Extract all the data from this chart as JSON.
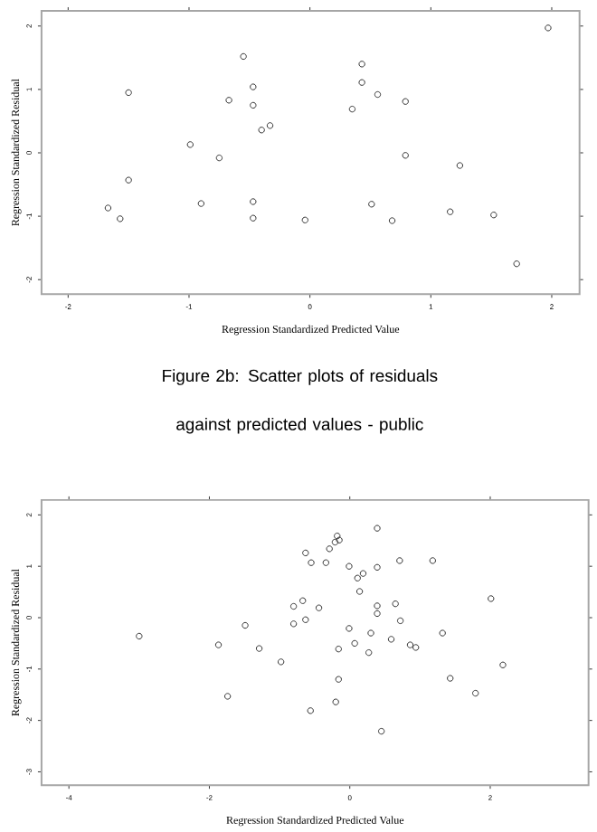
{
  "chart_data": [
    {
      "type": "scatter",
      "xlabel": "Regression Standardized Predicted Value",
      "ylabel": "Regression Standardized Residual",
      "marker": "circle",
      "color": "#333333",
      "x": [
        -1.67,
        -1.57,
        -1.5,
        -1.5,
        -0.99,
        -0.9,
        -0.75,
        -0.67,
        -0.55,
        -0.47,
        -0.47,
        -0.47,
        -0.47,
        -0.4,
        -0.33,
        -0.04,
        0.35,
        0.43,
        0.43,
        0.56,
        0.51,
        0.68,
        0.79,
        0.79,
        1.16,
        1.24,
        1.52,
        1.71,
        1.97
      ],
      "values": [
        -0.87,
        -1.04,
        0.95,
        -0.43,
        0.13,
        -0.8,
        -0.08,
        0.83,
        1.52,
        1.04,
        0.75,
        -0.77,
        -1.03,
        0.36,
        0.43,
        -1.06,
        0.69,
        1.4,
        1.11,
        0.92,
        -0.81,
        -1.07,
        0.81,
        -0.04,
        -0.93,
        -0.2,
        -0.98,
        -1.75,
        1.97
      ],
      "xlim": [
        -2.22,
        2.23
      ],
      "ylim": [
        -2.23,
        2.24
      ],
      "xticks": [
        -2,
        -1,
        0,
        1,
        2
      ],
      "yticks": [
        -2,
        -1,
        0,
        1,
        2
      ],
      "annotations": [
        "Figure 2b: Scatter plots of residuals against predicted values - public"
      ]
    },
    {
      "type": "scatter",
      "xlabel": "Regression Standardized Predicted Value",
      "ylabel": "Regression Standardized Residual",
      "marker": "circle",
      "color": "#333333",
      "x": [
        -3.0,
        -1.87,
        -1.74,
        -1.49,
        -1.29,
        -0.98,
        -0.8,
        -0.8,
        -0.67,
        -0.63,
        -0.63,
        -0.55,
        -0.56,
        -0.44,
        -0.34,
        -0.29,
        -0.21,
        -0.18,
        -0.15,
        -0.2,
        -0.16,
        -0.16,
        -0.01,
        -0.01,
        0.07,
        0.11,
        0.14,
        0.19,
        0.27,
        0.3,
        0.39,
        0.39,
        0.39,
        0.39,
        0.45,
        0.59,
        0.65,
        0.71,
        0.72,
        0.86,
        0.94,
        1.18,
        1.32,
        1.43,
        1.79,
        2.01,
        2.18
      ],
      "values": [
        -0.36,
        -0.53,
        -1.53,
        -0.15,
        -0.6,
        -0.86,
        0.22,
        -0.12,
        0.33,
        1.26,
        -0.04,
        1.07,
        -1.81,
        0.19,
        1.07,
        1.34,
        1.47,
        1.59,
        1.51,
        -1.64,
        -0.61,
        -1.2,
        1.0,
        -0.21,
        -0.5,
        0.77,
        0.51,
        0.86,
        -0.68,
        -0.3,
        0.98,
        0.23,
        0.08,
        1.74,
        -2.21,
        -0.42,
        0.27,
        1.11,
        -0.06,
        -0.53,
        -0.58,
        1.11,
        -0.3,
        -1.18,
        -1.47,
        0.37,
        -0.92
      ],
      "xlim": [
        -4.39,
        3.4
      ],
      "ylim": [
        -3.26,
        2.29
      ],
      "xticks": [
        -4,
        -2,
        0,
        2
      ],
      "yticks": [
        -3,
        -2,
        -1,
        0,
        1,
        2
      ]
    }
  ]
}
